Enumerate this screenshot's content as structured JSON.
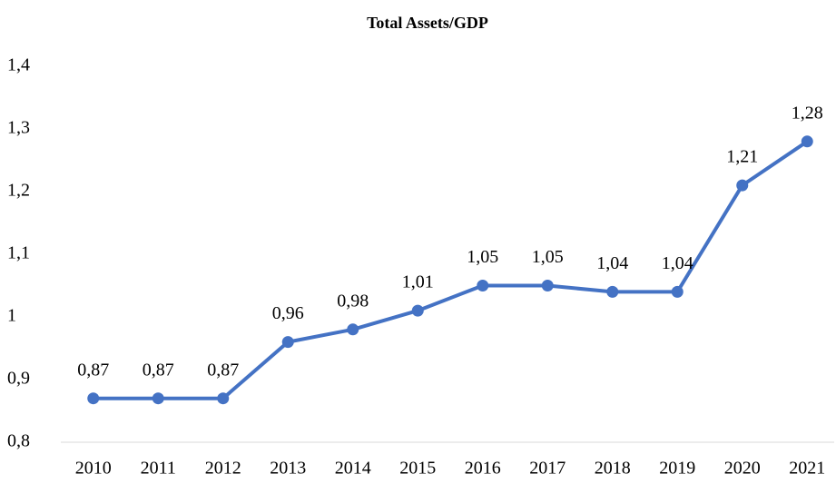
{
  "chart_data": {
    "type": "line",
    "title": "Total Assets/GDP",
    "categories": [
      "2010",
      "2011",
      "2012",
      "2013",
      "2014",
      "2015",
      "2016",
      "2017",
      "2018",
      "2019",
      "2020",
      "2021"
    ],
    "series": [
      {
        "name": "Total Assets/GDP",
        "color": "#4472c4",
        "values": [
          0.87,
          0.87,
          0.87,
          0.96,
          0.98,
          1.01,
          1.05,
          1.05,
          1.04,
          1.04,
          1.21,
          1.28
        ],
        "value_labels": [
          "0,87",
          "0,87",
          "0,87",
          "0,96",
          "0,98",
          "1,01",
          "1,05",
          "1,05",
          "1,04",
          "1,04",
          "1,21",
          "1,28"
        ]
      }
    ],
    "ylim": [
      0.8,
      1.4
    ],
    "yticks": [
      {
        "value": 0.8,
        "label": "0,8"
      },
      {
        "value": 0.9,
        "label": "0,9"
      },
      1,
      {
        "value": 1.1,
        "label": "1,1"
      },
      {
        "value": 1.2,
        "label": "1,2"
      },
      {
        "value": 1.3,
        "label": "1,3"
      },
      {
        "value": 1.4,
        "label": "1,4"
      }
    ],
    "grid": false
  }
}
